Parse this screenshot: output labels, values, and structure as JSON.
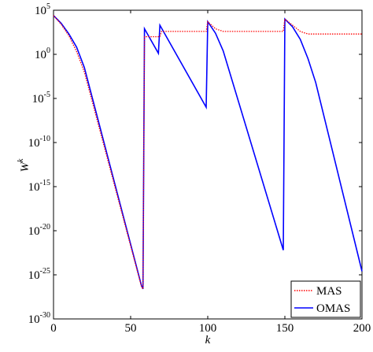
{
  "chart_data": {
    "type": "line",
    "yscale": "log",
    "xlabel": "k",
    "ylabel": "W^k",
    "xlim": [
      0,
      200
    ],
    "xticks": [
      0,
      50,
      100,
      150,
      200
    ],
    "ylim": [
      1e-30,
      100000
    ],
    "yticks": [
      {
        "value": 100000,
        "label": "10^5"
      },
      {
        "value": 1,
        "label": "10^0"
      },
      {
        "value": 1e-05,
        "label": "10^-5"
      },
      {
        "value": 1e-10,
        "label": "10^-10"
      },
      {
        "value": 1e-15,
        "label": "10^-15"
      },
      {
        "value": 1e-20,
        "label": "10^-20"
      },
      {
        "value": 1e-25,
        "label": "10^-25"
      },
      {
        "value": 1e-30,
        "label": "10^-30"
      }
    ],
    "legend": "lower right",
    "series": [
      {
        "name": "MAS",
        "color": "#ff0000",
        "dash": "dotted",
        "x": [
          0,
          5,
          10,
          15,
          20,
          57,
          58,
          59,
          69,
          70,
          99,
          100,
          105,
          110,
          149,
          150,
          155,
          160,
          165,
          200
        ],
        "values": [
          25000,
          2500,
          125,
          2,
          0.01,
          5e-27,
          2.5e-27,
          100,
          100,
          400,
          400,
          5000,
          800,
          400,
          400,
          10000,
          2000,
          400,
          200,
          200
        ]
      },
      {
        "name": "OMAS",
        "color": "#0000ff",
        "dash": "solid",
        "x": [
          0,
          5,
          10,
          15,
          20,
          57,
          58,
          59,
          68,
          69,
          99,
          100,
          105,
          110,
          149,
          150,
          155,
          160,
          165,
          170,
          200
        ],
        "values": [
          25000,
          3200,
          200,
          6.3,
          0.032,
          6.3e-27,
          2.5e-27,
          800,
          1.3,
          2000,
          1e-06,
          5000,
          250,
          2.5,
          6.3e-23,
          10000,
          1300,
          50,
          0.32,
          0.00063,
          2.5e-25
        ]
      }
    ]
  }
}
